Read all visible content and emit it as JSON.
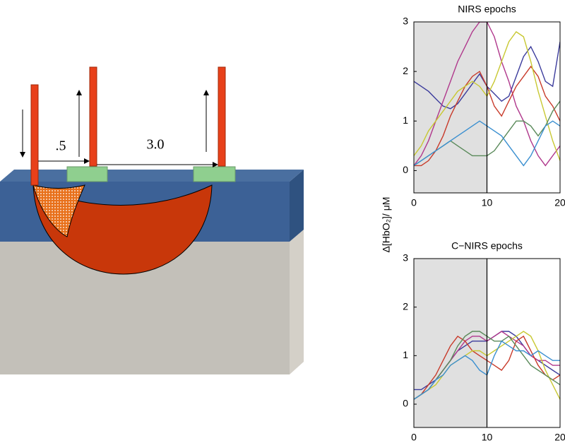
{
  "diagram": {
    "labels": [
      ".5",
      "3.0"
    ]
  },
  "shared_ylabel": "Δ[HbO₂]/ μM",
  "chart_data": [
    {
      "type": "line",
      "title": "NIRS epochs",
      "x": [
        0,
        1,
        2,
        3,
        4,
        5,
        6,
        7,
        8,
        9,
        10,
        11,
        12,
        13,
        14,
        15,
        16,
        17,
        18,
        19,
        20
      ],
      "xlim": [
        0,
        20
      ],
      "xticks": [
        0,
        10,
        20
      ],
      "ylim": [
        -0.45,
        3
      ],
      "yticks": [
        0,
        1,
        2,
        3
      ],
      "shade": [
        0,
        10
      ],
      "vline": 10,
      "series": [
        {
          "color": "#3b3b9c",
          "values": [
            1.8,
            1.7,
            1.6,
            1.45,
            1.3,
            1.25,
            1.35,
            1.55,
            1.75,
            1.95,
            1.7,
            1.55,
            1.4,
            1.5,
            1.9,
            2.3,
            2.5,
            2.2,
            1.8,
            1.7,
            2.6
          ]
        },
        {
          "color": "#b0388c",
          "values": [
            0.1,
            0.3,
            0.6,
            1.0,
            1.4,
            1.8,
            2.2,
            2.5,
            2.8,
            3.0,
            3.0,
            2.7,
            2.2,
            1.8,
            1.3,
            1.0,
            0.6,
            0.3,
            0.1,
            0.3,
            0.5
          ]
        },
        {
          "color": "#c83a2a",
          "values": [
            0.1,
            0.1,
            0.2,
            0.4,
            0.7,
            1.1,
            1.4,
            1.7,
            1.9,
            2.0,
            1.7,
            1.3,
            1.1,
            1.4,
            1.7,
            1.9,
            2.1,
            1.9,
            1.5,
            1.3,
            1.0
          ]
        },
        {
          "color": "#c8c832",
          "values": [
            0.3,
            0.5,
            0.8,
            1.0,
            1.2,
            1.4,
            1.6,
            1.7,
            1.8,
            1.7,
            1.5,
            1.8,
            2.2,
            2.6,
            2.8,
            2.7,
            2.2,
            1.6,
            1.1,
            0.6,
            0.2
          ]
        },
        {
          "color": "#5a8a5a",
          "values": [
            0.1,
            0.2,
            0.3,
            0.4,
            0.5,
            0.6,
            0.5,
            0.4,
            0.3,
            0.3,
            0.3,
            0.4,
            0.6,
            0.8,
            1.0,
            1.0,
            0.9,
            0.7,
            0.9,
            1.2,
            1.4
          ]
        },
        {
          "color": "#3a8fd0",
          "values": [
            0.1,
            0.2,
            0.3,
            0.4,
            0.5,
            0.6,
            0.7,
            0.8,
            0.9,
            1.0,
            0.9,
            0.8,
            0.7,
            0.5,
            0.3,
            0.1,
            0.3,
            0.6,
            0.9,
            1.0,
            0.9
          ]
        }
      ]
    },
    {
      "type": "line",
      "title": "C−NIRS epochs",
      "x": [
        0,
        1,
        2,
        3,
        4,
        5,
        6,
        7,
        8,
        9,
        10,
        11,
        12,
        13,
        14,
        15,
        16,
        17,
        18,
        19,
        20
      ],
      "xlim": [
        0,
        20
      ],
      "xticks": [
        0,
        10,
        20
      ],
      "ylim": [
        -0.48,
        3
      ],
      "yticks": [
        0,
        1,
        2,
        3
      ],
      "shade": [
        0,
        10
      ],
      "vline": 10,
      "series": [
        {
          "color": "#3b3b9c",
          "values": [
            0.3,
            0.3,
            0.4,
            0.5,
            0.7,
            0.9,
            1.1,
            1.2,
            1.3,
            1.3,
            1.3,
            1.4,
            1.5,
            1.5,
            1.4,
            1.2,
            1.0,
            0.9,
            0.8,
            0.7,
            0.6
          ]
        },
        {
          "color": "#b0388c",
          "values": [
            0.1,
            0.2,
            0.3,
            0.5,
            0.7,
            0.9,
            1.1,
            1.3,
            1.4,
            1.4,
            1.3,
            1.4,
            1.5,
            1.4,
            1.3,
            1.2,
            1.0,
            0.9,
            0.9,
            0.8,
            0.8
          ]
        },
        {
          "color": "#c83a2a",
          "values": [
            0.1,
            0.2,
            0.4,
            0.6,
            0.9,
            1.2,
            1.4,
            1.3,
            1.1,
            1.0,
            0.9,
            0.8,
            0.7,
            0.9,
            1.3,
            1.4,
            1.1,
            0.8,
            0.6,
            0.5,
            0.6
          ]
        },
        {
          "color": "#c8c832",
          "values": [
            0.1,
            0.2,
            0.3,
            0.4,
            0.6,
            0.8,
            0.9,
            1.0,
            1.1,
            1.1,
            1.0,
            1.1,
            1.2,
            1.3,
            1.4,
            1.5,
            1.4,
            1.1,
            0.7,
            0.4,
            0.1
          ]
        },
        {
          "color": "#5a8a5a",
          "values": [
            0.1,
            0.2,
            0.3,
            0.5,
            0.7,
            0.9,
            1.2,
            1.4,
            1.5,
            1.5,
            1.4,
            1.3,
            1.3,
            1.4,
            1.2,
            1.0,
            0.8,
            0.7,
            0.6,
            0.5,
            0.4
          ]
        },
        {
          "color": "#3a8fd0",
          "values": [
            0.1,
            0.2,
            0.3,
            0.5,
            0.6,
            0.8,
            0.9,
            1.0,
            0.9,
            0.7,
            0.6,
            1.0,
            1.3,
            1.2,
            1.1,
            1.1,
            1.0,
            1.1,
            1.0,
            0.9,
            0.9
          ]
        }
      ]
    }
  ]
}
